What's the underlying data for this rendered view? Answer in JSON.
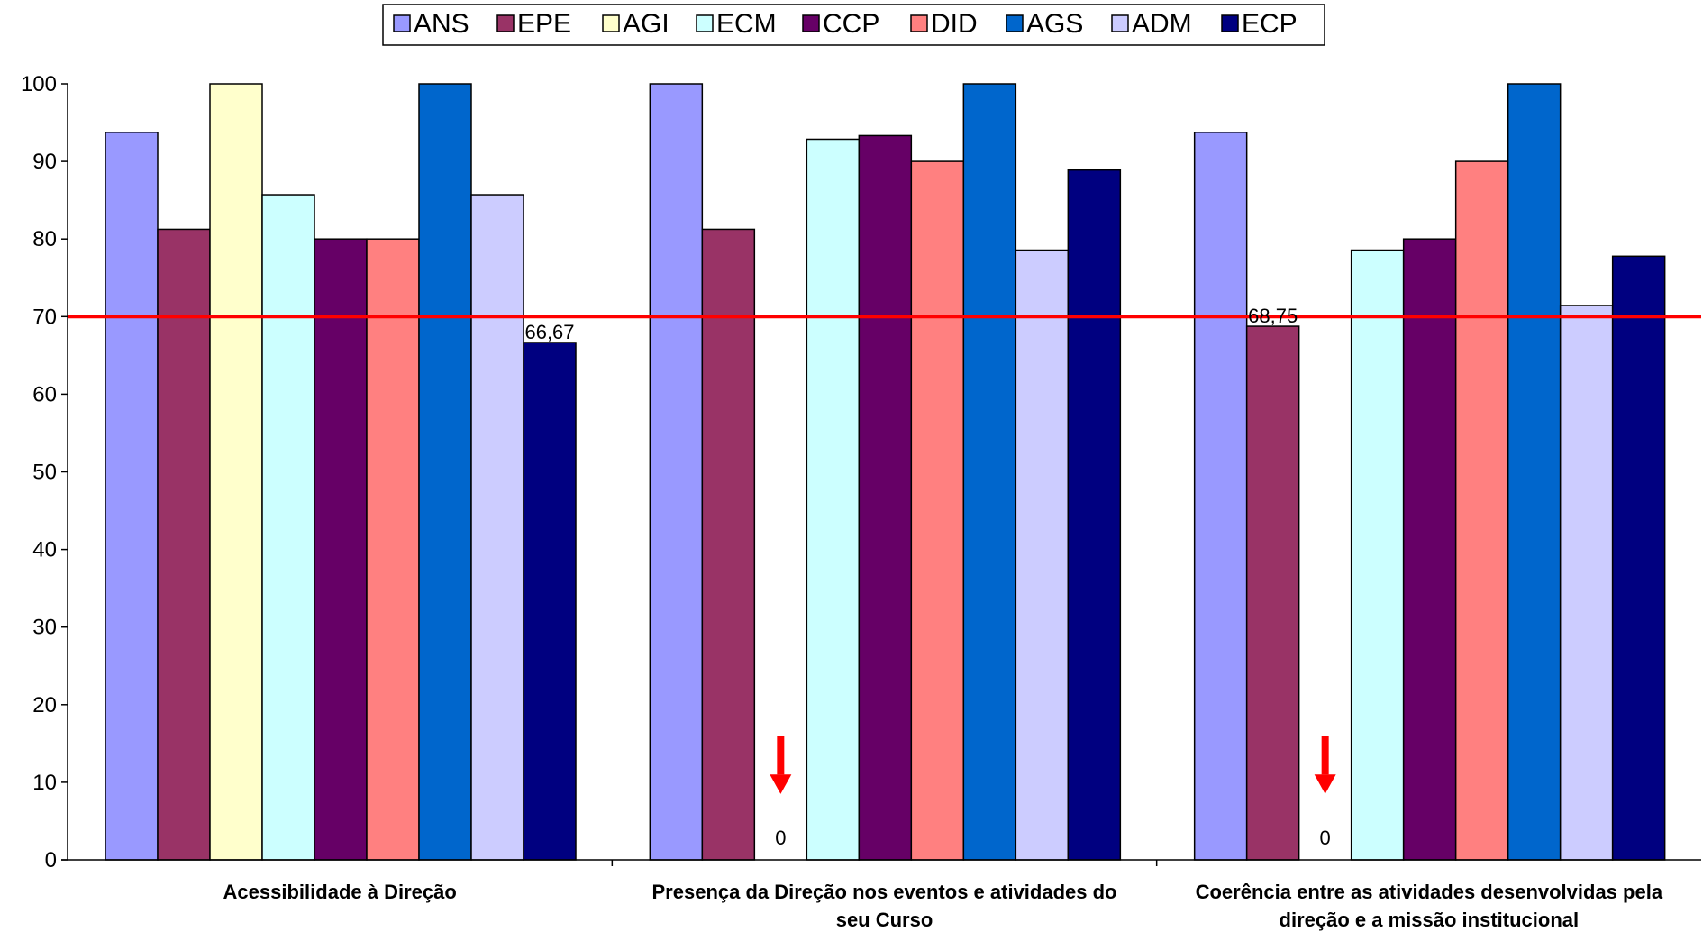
{
  "chart_data": {
    "type": "bar",
    "title": "",
    "xlabel": "",
    "ylabel": "",
    "ylim": [
      0,
      100
    ],
    "yticks": [
      0,
      10,
      20,
      30,
      40,
      50,
      60,
      70,
      80,
      90,
      100
    ],
    "grid": false,
    "legend_position": "top",
    "categories": [
      [
        "Acessibilidade à Direção"
      ],
      [
        "Presença da Direção nos eventos e atividades do",
        "seu Curso"
      ],
      [
        "Coerência entre as atividades desenvolvidas pela",
        "direção e a missão institucional"
      ]
    ],
    "series": [
      {
        "name": "ANS",
        "color": "#9999FF",
        "values": [
          93.75,
          100,
          93.75
        ]
      },
      {
        "name": "EPE",
        "color": "#993366",
        "values": [
          81.25,
          81.25,
          68.75
        ]
      },
      {
        "name": "AGI",
        "color": "#FFFFCC",
        "values": [
          100,
          0,
          0
        ]
      },
      {
        "name": "ECM",
        "color": "#CCFFFF",
        "values": [
          85.71,
          92.86,
          78.57
        ]
      },
      {
        "name": "CCP",
        "color": "#660066",
        "values": [
          80,
          93.33,
          80
        ]
      },
      {
        "name": "DID",
        "color": "#FF8080",
        "values": [
          80,
          90,
          90
        ]
      },
      {
        "name": "AGS",
        "color": "#0066CC",
        "values": [
          100,
          100,
          100
        ]
      },
      {
        "name": "ADM",
        "color": "#CCCCFF",
        "values": [
          85.71,
          78.57,
          71.43
        ]
      },
      {
        "name": "ECP",
        "color": "#000080",
        "values": [
          66.67,
          88.89,
          77.78
        ]
      }
    ],
    "reference_line": {
      "value": 70,
      "color": "#FF0000"
    },
    "annotations": [
      {
        "category": 0,
        "series": 8,
        "text": "66,67"
      },
      {
        "category": 2,
        "series": 1,
        "text": "68,75"
      },
      {
        "category": 1,
        "series": 2,
        "text": "0",
        "arrow": true
      },
      {
        "category": 2,
        "series": 2,
        "text": "0",
        "arrow": true
      }
    ],
    "arrow_color": "#FF0000"
  }
}
